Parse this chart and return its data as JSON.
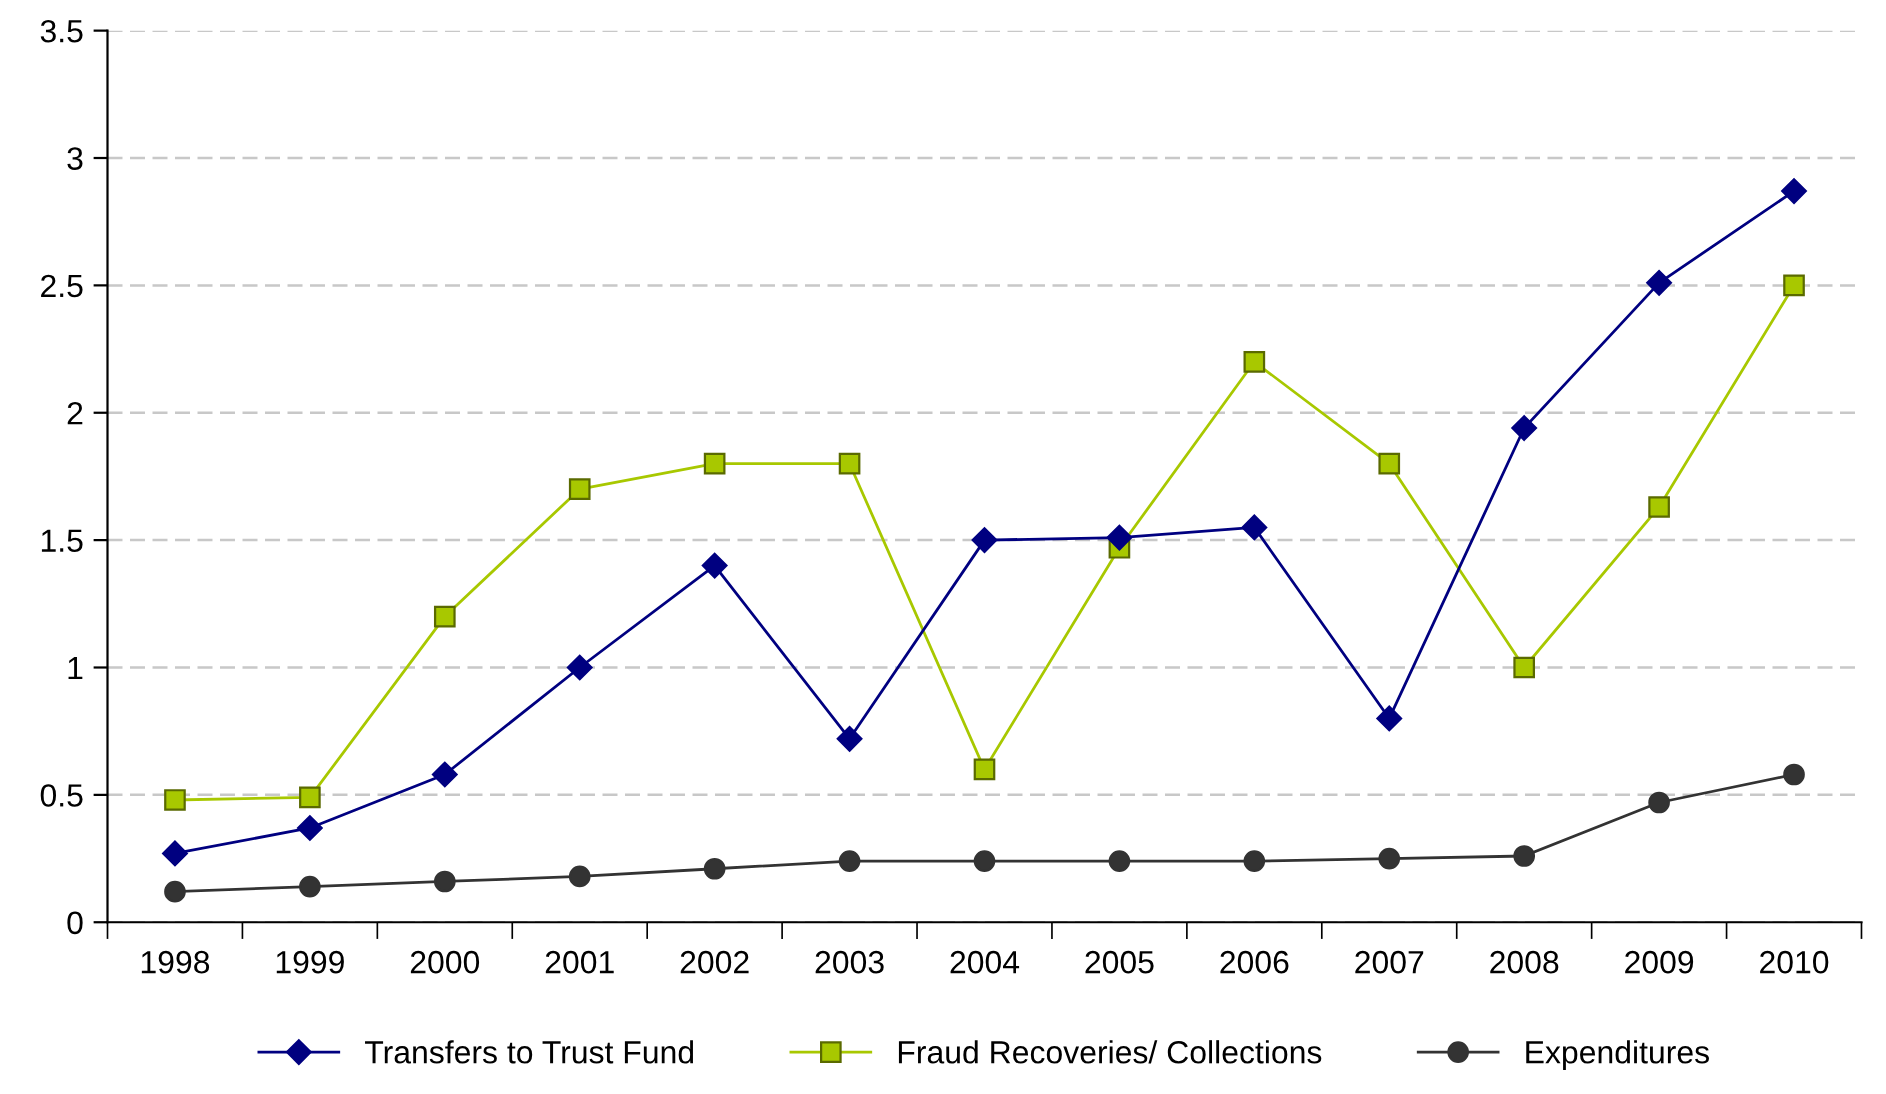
{
  "chart_data": {
    "type": "line",
    "categories": [
      "1998",
      "1999",
      "2000",
      "2001",
      "2002",
      "2003",
      "2004",
      "2005",
      "2006",
      "2007",
      "2008",
      "2009",
      "2010"
    ],
    "series": [
      {
        "name": "Transfers to Trust Fund",
        "color": "#000080",
        "marker": "diamond",
        "values": [
          0.27,
          0.37,
          0.58,
          1.0,
          1.4,
          0.72,
          1.5,
          1.51,
          1.55,
          0.8,
          1.94,
          2.51,
          2.87
        ]
      },
      {
        "name": "Fraud Recoveries/ Collections",
        "color": "#a8c800",
        "marker": "square",
        "values": [
          0.48,
          0.49,
          1.2,
          1.7,
          1.8,
          1.8,
          0.6,
          1.47,
          2.2,
          1.8,
          1.0,
          1.63,
          2.5
        ]
      },
      {
        "name": "Expenditures",
        "color": "#333333",
        "marker": "circle",
        "values": [
          0.12,
          0.14,
          0.16,
          0.18,
          0.21,
          0.24,
          0.24,
          0.24,
          0.24,
          0.25,
          0.26,
          0.47,
          0.58
        ]
      }
    ],
    "ylim": [
      0,
      3.5
    ],
    "yticks": [
      0,
      0.5,
      1,
      1.5,
      2,
      2.5,
      3,
      3.5
    ],
    "grid": "y",
    "legend": "bottom",
    "line_style": "solid"
  }
}
